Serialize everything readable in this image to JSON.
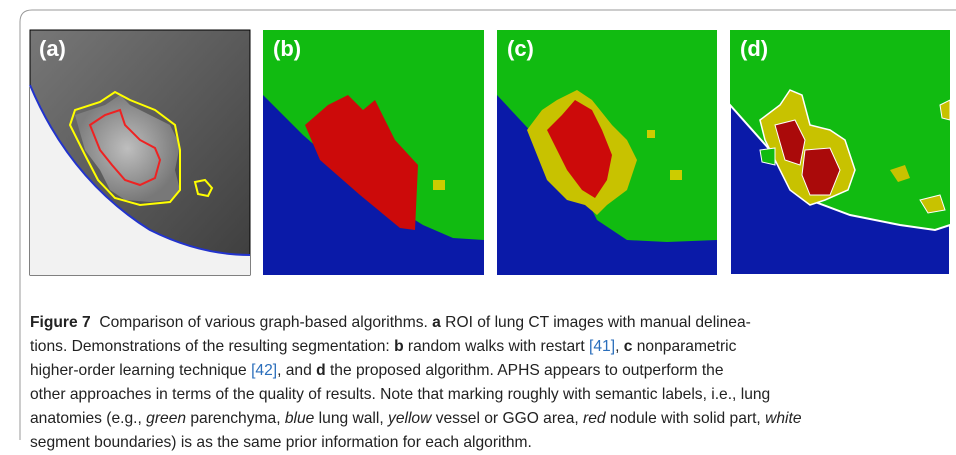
{
  "figure": {
    "panels": [
      {
        "label": "(a)"
      },
      {
        "label": "(b)"
      },
      {
        "label": "(c)"
      },
      {
        "label": "(d)"
      }
    ],
    "caption": {
      "lines": [
        [
          {
            "text": "Figure 7",
            "style": "bold"
          },
          {
            "text": "  Comparison of various graph-based algorithms. ",
            "style": "normal"
          },
          {
            "text": "a",
            "style": "bold"
          },
          {
            "text": " ROI of lung CT images with manual delinea-",
            "style": "normal"
          }
        ],
        [
          {
            "text": "tions. Demonstrations of the resulting segmentation: ",
            "style": "normal"
          },
          {
            "text": "b",
            "style": "bold"
          },
          {
            "text": " random walks with restart ",
            "style": "normal"
          },
          {
            "text": "[41]",
            "style": "cite"
          },
          {
            "text": ", ",
            "style": "normal"
          },
          {
            "text": "c",
            "style": "bold"
          },
          {
            "text": " nonparametric",
            "style": "normal"
          }
        ],
        [
          {
            "text": "higher-order learning technique ",
            "style": "normal"
          },
          {
            "text": "[42]",
            "style": "cite"
          },
          {
            "text": ", and ",
            "style": "normal"
          },
          {
            "text": "d",
            "style": "bold"
          },
          {
            "text": " the proposed algorithm. APHS appears to outperform the",
            "style": "normal"
          }
        ],
        [
          {
            "text": "other approaches in terms of the quality of results. Note that marking roughly with semantic labels, i.e., lung",
            "style": "normal"
          }
        ],
        [
          {
            "text": "anatomies (e.g., ",
            "style": "normal"
          },
          {
            "text": "green",
            "style": "italic"
          },
          {
            "text": " parenchyma, ",
            "style": "normal"
          },
          {
            "text": "blue",
            "style": "italic"
          },
          {
            "text": " lung wall, ",
            "style": "normal"
          },
          {
            "text": "yellow",
            "style": "italic"
          },
          {
            "text": " vessel or GGO area, ",
            "style": "normal"
          },
          {
            "text": "red",
            "style": "italic"
          },
          {
            "text": " nodule with solid part, ",
            "style": "normal"
          },
          {
            "text": "white",
            "style": "italic"
          }
        ],
        [
          {
            "text": "segment boundaries) is as the same prior information for each algorithm.",
            "style": "normal"
          }
        ]
      ]
    }
  }
}
